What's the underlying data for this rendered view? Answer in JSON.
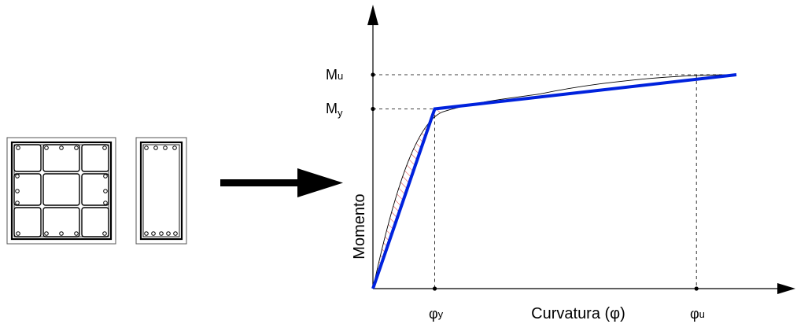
{
  "chart_data": {
    "type": "line",
    "title": "",
    "xlabel": "Curvatura (φ)",
    "ylabel": "Momento",
    "x_tick_labels": [
      {
        "main": "φ",
        "sub": "y"
      },
      {
        "main": "φ",
        "sub": "u"
      }
    ],
    "y_tick_labels": [
      {
        "main": "M",
        "sub": "u"
      },
      {
        "main": "M",
        "sub": "y"
      }
    ],
    "series": [
      {
        "kind": "moment-curvature curve",
        "x": [
          0,
          0.17,
          0.42,
          0.89,
          0.99
        ],
        "y": [
          0,
          0.84,
          0.89,
          0.999,
          1.0
        ]
      },
      {
        "kind": "bilinear idealization",
        "x": [
          0,
          0.17,
          1.0
        ],
        "y": [
          0,
          0.84,
          1.0
        ]
      }
    ],
    "colors": {
      "bilinear": "#0022dd",
      "hatch": "#e02020",
      "lines": "#000000"
    },
    "sections": [
      {
        "name": "column-section",
        "layout": "3x3 grid of stirrups"
      },
      {
        "name": "beam-section",
        "layout": "rectangular stirrup"
      }
    ]
  }
}
